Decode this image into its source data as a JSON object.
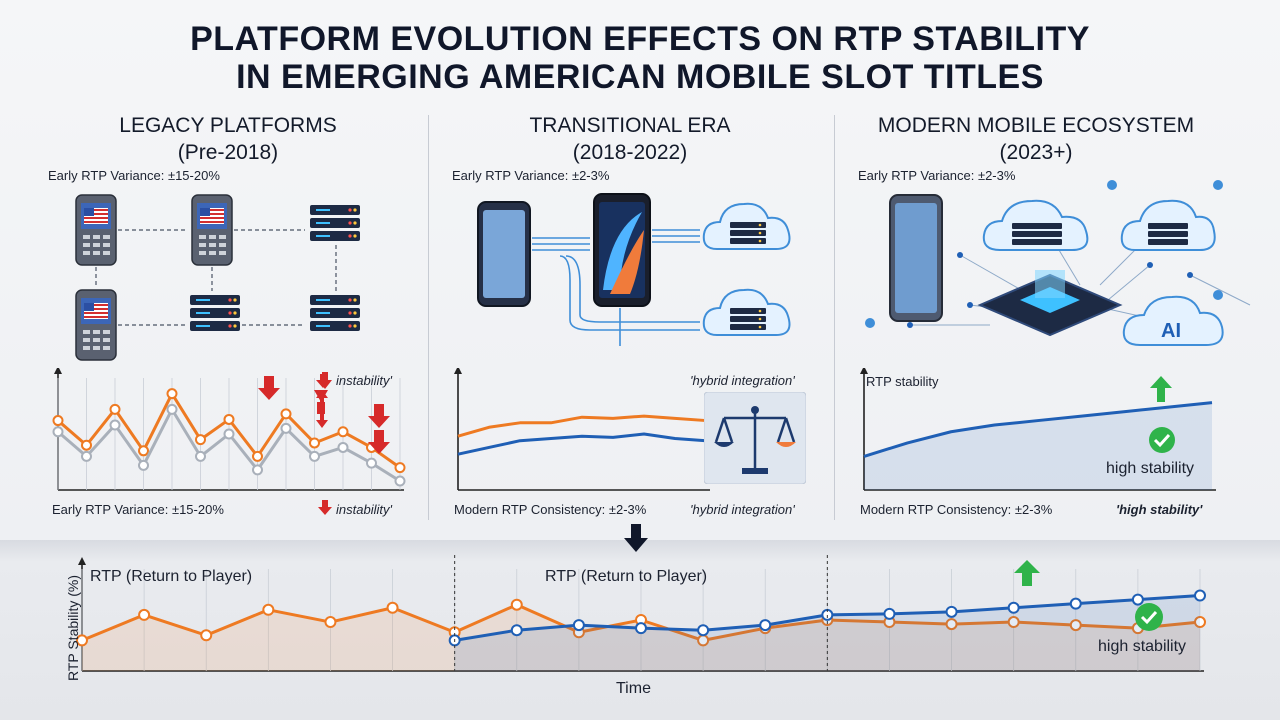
{
  "title_line1": "PLATFORM EVOLUTION EFFECTS ON RTP STABILITY",
  "title_line2": "IN EMERGING AMERICAN MOBILE SLOT TITLES",
  "panels": [
    {
      "heading_line1": "LEGACY PLATFORMS",
      "heading_line2": "(Pre-2018)",
      "top_note": "Early RTP Variance: ±15-20%",
      "chart_annotation": "instability'",
      "footer_left": "Early RTP Variance: ±15-20%",
      "footer_right": "instability'"
    },
    {
      "heading_line1": "TRANSITIONAL ERA",
      "heading_line2": "(2018-2022)",
      "top_note": "Early RTP Variance: ±2-3%",
      "chart_annotation": "'hybrid integration'",
      "footer_left": "Modern RTP Consistency: ±2-3%",
      "footer_right": "'hybrid integration'"
    },
    {
      "heading_line1": "MODERN MOBILE ECOSYSTEM",
      "heading_line2": "(2023+)",
      "top_note": "Early RTP Variance: ±2-3%",
      "chart_annotation": "RTP stability",
      "badge_label": "high stability",
      "ai_label": "AI",
      "footer_left": "Modern RTP Consistency: ±2-3%",
      "footer_right": "'high stability'"
    }
  ],
  "bottom": {
    "label_left": "RTP (Return to Player)",
    "label_center": "RTP (Return to Player)",
    "y_axis_title": "RTP Stability (%)",
    "x_axis_title": "Time",
    "badge_label": "high stability"
  },
  "colors": {
    "orange": "#ee7a22",
    "blue": "#1f5fb5",
    "gray": "#a9b0ba",
    "red_arrow": "#d62a2a",
    "green": "#2fb34a"
  },
  "chart_data": [
    {
      "type": "line",
      "x": [
        0,
        1,
        2,
        3,
        4,
        5,
        6,
        7,
        8,
        9,
        10,
        11,
        12
      ],
      "series": [
        {
          "values": [
            62,
            40,
            72,
            35,
            86,
            45,
            63,
            30,
            68,
            42,
            52,
            38,
            20
          ]
        },
        {
          "values": [
            52,
            30,
            58,
            22,
            72,
            30,
            50,
            18,
            55,
            30,
            38,
            24,
            8
          ]
        }
      ],
      "ylim": [
        0,
        100
      ]
    },
    {
      "type": "line",
      "x": [
        0,
        1,
        2,
        3,
        4,
        5,
        6,
        7,
        8
      ],
      "series": [
        {
          "values": [
            48,
            56,
            60,
            60,
            65,
            64,
            66,
            64,
            62
          ]
        },
        {
          "values": [
            32,
            38,
            44,
            46,
            48,
            47,
            50,
            46,
            44
          ]
        }
      ],
      "ylim": [
        0,
        100
      ]
    },
    {
      "type": "line",
      "x": [
        0,
        1,
        2,
        3,
        4,
        5,
        6,
        7,
        8
      ],
      "series": [
        {
          "values": [
            30,
            42,
            52,
            58,
            62,
            66,
            70,
            74,
            78
          ]
        }
      ],
      "ylim": [
        0,
        100
      ]
    },
    {
      "type": "line",
      "x": [
        0,
        1,
        2,
        3,
        4,
        5,
        6,
        7,
        8,
        9,
        10,
        11,
        12,
        13,
        14,
        15,
        16,
        17,
        18
      ],
      "series": [
        {
          "values": [
            30,
            55,
            35,
            60,
            48,
            62,
            38,
            65,
            38,
            50,
            30,
            42,
            50,
            48,
            46,
            48,
            45,
            42,
            48
          ]
        },
        {
          "values": [
            null,
            null,
            null,
            null,
            null,
            null,
            30,
            40,
            45,
            42,
            40,
            45,
            55,
            56,
            58,
            62,
            66,
            70,
            74
          ]
        }
      ],
      "ylim": [
        0,
        100
      ]
    }
  ]
}
